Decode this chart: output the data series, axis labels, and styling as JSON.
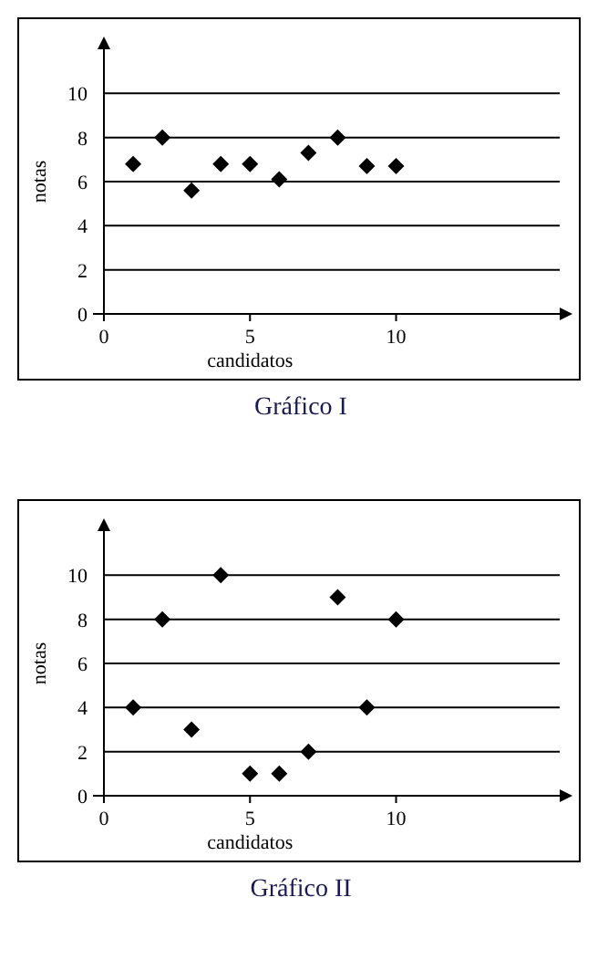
{
  "chart_data": [
    {
      "type": "scatter",
      "title": "Gráfico I",
      "xlabel": "candidatos",
      "ylabel": "notas",
      "x": [
        1,
        2,
        3,
        4,
        5,
        6,
        7,
        8,
        9,
        10
      ],
      "series": [
        {
          "color": "#000000",
          "values": [
            6.8,
            8,
            5.6,
            6.8,
            6.8,
            6.1,
            7.3,
            8,
            6.7,
            6.7
          ]
        }
      ],
      "xlim": [
        0,
        15.6
      ],
      "xticks": [
        0,
        5,
        10
      ],
      "ylim": [
        0,
        12
      ],
      "yticks": [
        0,
        2,
        4,
        6,
        8,
        10
      ],
      "grid": "y",
      "marker": "diamond"
    },
    {
      "type": "scatter",
      "title": "Gráfico II",
      "xlabel": "candidatos",
      "ylabel": "notas",
      "x": [
        1,
        2,
        3,
        4,
        5,
        6,
        7,
        8,
        9,
        10
      ],
      "series": [
        {
          "color": "#000000",
          "values": [
            4,
            8,
            3,
            10,
            1,
            1,
            2,
            9,
            4,
            8
          ]
        }
      ],
      "xlim": [
        0,
        15.6
      ],
      "xticks": [
        0,
        5,
        10
      ],
      "ylim": [
        0,
        12
      ],
      "yticks": [
        0,
        2,
        4,
        6,
        8,
        10
      ],
      "grid": "y",
      "marker": "diamond"
    }
  ]
}
